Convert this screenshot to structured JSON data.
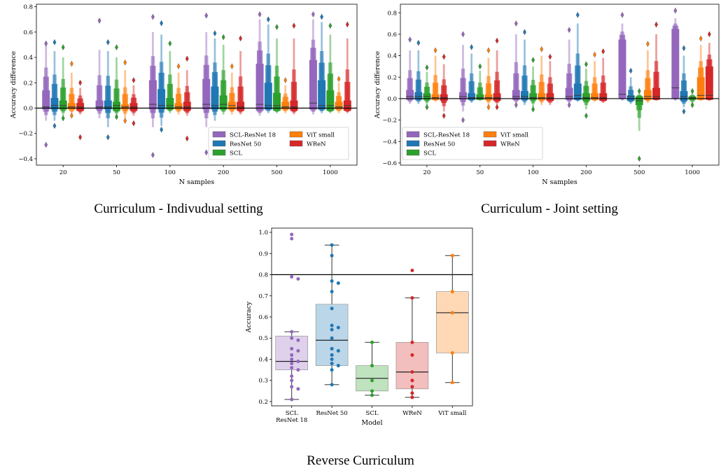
{
  "colors": {
    "SCL-ResNet 18": "#9467bd",
    "ResNet 50": "#1f77b4",
    "SCL": "#2ca02c",
    "ViT small": "#ff7f0e",
    "WReN": "#d62728"
  },
  "chart_data": [
    {
      "type": "boxen",
      "caption": "Curriculum - Indivudual setting",
      "xlabel": "N samples",
      "ylabel": "Accuracy difference",
      "categories": [
        "20",
        "50",
        "100",
        "200",
        "500",
        "1000"
      ],
      "ylim": [
        -0.45,
        0.82
      ],
      "yticks": [
        -0.4,
        -0.2,
        0.0,
        0.2,
        0.4,
        0.6,
        0.8
      ],
      "ytick_labels": [
        "−0.4",
        "−0.2",
        "0.0",
        "0.2",
        "0.4",
        "0.6",
        "0.8"
      ],
      "hline": 0.0,
      "legend": {
        "placement": "lower right",
        "columns": 2,
        "order": [
          "SCL-ResNet 18",
          "ResNet 50",
          "SCL",
          "ViT small",
          "WReN"
        ]
      },
      "series": [
        {
          "name": "SCL-ResNet 18",
          "median": [
            0.01,
            0.01,
            0.03,
            0.03,
            0.03,
            0.04
          ],
          "q1": [
            -0.01,
            -0.01,
            -0.01,
            -0.01,
            -0.02,
            -0.01
          ],
          "q3": [
            0.14,
            0.06,
            0.22,
            0.23,
            0.35,
            0.38
          ],
          "lo": [
            -0.1,
            -0.08,
            -0.15,
            -0.15,
            -0.06,
            -0.05
          ],
          "hi": [
            0.5,
            0.46,
            0.6,
            0.6,
            0.7,
            0.7
          ],
          "fmin": [
            -0.29,
            -0.08,
            -0.37,
            -0.35,
            -0.06,
            -0.05
          ],
          "fmax": [
            0.51,
            0.69,
            0.72,
            0.73,
            0.74,
            0.74
          ]
        },
        {
          "name": "ResNet 50",
          "median": [
            0.02,
            0.01,
            0.02,
            0.02,
            0.02,
            0.02
          ],
          "q1": [
            -0.01,
            -0.01,
            -0.01,
            -0.01,
            -0.01,
            -0.01
          ],
          "q3": [
            0.08,
            0.06,
            0.15,
            0.17,
            0.2,
            0.22
          ],
          "lo": [
            -0.1,
            -0.15,
            -0.14,
            -0.1,
            -0.04,
            -0.04
          ],
          "hi": [
            0.45,
            0.45,
            0.58,
            0.55,
            0.66,
            0.68
          ],
          "fmin": [
            -0.14,
            -0.23,
            -0.17,
            -0.1,
            -0.04,
            -0.04
          ],
          "fmax": [
            0.52,
            0.52,
            0.67,
            0.59,
            0.7,
            0.72
          ]
        },
        {
          "name": "SCL",
          "median": [
            0.02,
            0.02,
            0.02,
            0.03,
            0.02,
            0.02
          ],
          "q1": [
            -0.01,
            -0.02,
            -0.01,
            -0.01,
            -0.02,
            -0.02
          ],
          "q3": [
            0.06,
            0.05,
            0.08,
            0.1,
            0.12,
            0.14
          ],
          "lo": [
            -0.06,
            -0.06,
            -0.04,
            -0.05,
            -0.04,
            -0.04
          ],
          "hi": [
            0.4,
            0.4,
            0.45,
            0.5,
            0.55,
            0.58
          ],
          "fmin": [
            -0.08,
            -0.07,
            -0.04,
            -0.05,
            -0.04,
            -0.04
          ],
          "fmax": [
            0.48,
            0.48,
            0.51,
            0.56,
            0.64,
            0.65
          ]
        },
        {
          "name": "ViT small",
          "median": [
            0.01,
            0.01,
            0.01,
            0.02,
            0.01,
            0.01
          ],
          "q1": [
            -0.01,
            -0.01,
            -0.01,
            -0.01,
            -0.01,
            -0.01
          ],
          "q3": [
            0.04,
            0.03,
            0.04,
            0.05,
            0.05,
            0.05
          ],
          "lo": [
            -0.05,
            -0.08,
            -0.05,
            -0.05,
            -0.04,
            -0.04
          ],
          "hi": [
            0.28,
            0.3,
            0.28,
            0.28,
            0.18,
            0.2
          ],
          "fmin": [
            -0.06,
            -0.1,
            -0.05,
            -0.05,
            -0.04,
            -0.04
          ],
          "fmax": [
            0.35,
            0.36,
            0.33,
            0.33,
            0.22,
            0.23
          ]
        },
        {
          "name": "WReN",
          "median": [
            0.01,
            0.01,
            0.01,
            0.01,
            0.01,
            0.02
          ],
          "q1": [
            -0.02,
            -0.02,
            -0.02,
            -0.02,
            -0.02,
            -0.02
          ],
          "q3": [
            0.04,
            0.04,
            0.05,
            0.05,
            0.06,
            0.06
          ],
          "lo": [
            -0.05,
            -0.06,
            -0.06,
            -0.05,
            -0.05,
            -0.04
          ],
          "hi": [
            0.16,
            0.18,
            0.3,
            0.45,
            0.55,
            0.55
          ],
          "fmin": [
            -0.23,
            -0.12,
            -0.24,
            -0.05,
            -0.05,
            -0.04
          ],
          "fmax": [
            0.2,
            0.22,
            0.39,
            0.55,
            0.65,
            0.66
          ]
        }
      ]
    },
    {
      "type": "boxen",
      "caption": "Curriculum - Joint setting",
      "xlabel": "N samples",
      "ylabel": "Accuracy difference",
      "categories": [
        "20",
        "50",
        "100",
        "200",
        "500",
        "1000"
      ],
      "ylim": [
        -0.62,
        0.88
      ],
      "yticks": [
        -0.6,
        -0.4,
        -0.2,
        0.0,
        0.2,
        0.4,
        0.6,
        0.8
      ],
      "ytick_labels": [
        "−0.6",
        "−0.4",
        "−0.2",
        "0.0",
        "0.2",
        "0.4",
        "0.6",
        "0.8"
      ],
      "hline": 0.0,
      "legend": {
        "placement": "lower left",
        "columns": 2,
        "order": [
          "SCL-ResNet 18",
          "ResNet 50",
          "SCL",
          "ViT small",
          "WReN"
        ]
      },
      "series": [
        {
          "name": "SCL-ResNet 18",
          "median": [
            0.02,
            0.02,
            0.02,
            0.02,
            0.04,
            0.1
          ],
          "q1": [
            -0.01,
            -0.01,
            -0.01,
            -0.01,
            0.0,
            0.0
          ],
          "q3": [
            0.08,
            0.06,
            0.08,
            0.1,
            0.55,
            0.65
          ],
          "lo": [
            -0.05,
            -0.12,
            -0.05,
            -0.05,
            -0.02,
            -0.02
          ],
          "hi": [
            0.45,
            0.5,
            0.6,
            0.55,
            0.7,
            0.75
          ],
          "fmin": [
            -0.05,
            -0.2,
            -0.06,
            -0.06,
            -0.02,
            -0.02
          ],
          "fmax": [
            0.55,
            0.6,
            0.7,
            0.64,
            0.78,
            0.82
          ]
        },
        {
          "name": "ResNet 50",
          "median": [
            0.02,
            0.01,
            0.02,
            0.03,
            0.02,
            0.02
          ],
          "q1": [
            -0.01,
            -0.01,
            -0.01,
            -0.01,
            -0.02,
            -0.02
          ],
          "q3": [
            0.06,
            0.05,
            0.07,
            0.14,
            0.03,
            0.07
          ],
          "lo": [
            -0.05,
            -0.04,
            -0.06,
            -0.03,
            -0.05,
            -0.08
          ],
          "hi": [
            0.45,
            0.42,
            0.55,
            0.7,
            0.2,
            0.4
          ],
          "fmin": [
            -0.05,
            -0.04,
            -0.06,
            -0.03,
            -0.05,
            -0.12
          ],
          "fmax": [
            0.52,
            0.48,
            0.62,
            0.78,
            0.26,
            0.47
          ]
        },
        {
          "name": "SCL",
          "median": [
            0.02,
            0.01,
            0.01,
            0.01,
            -0.02,
            0.01
          ],
          "q1": [
            -0.01,
            -0.01,
            -0.01,
            -0.02,
            -0.06,
            -0.01
          ],
          "q3": [
            0.05,
            0.04,
            0.05,
            0.05,
            0.02,
            0.02
          ],
          "lo": [
            -0.06,
            -0.02,
            -0.08,
            -0.1,
            -0.3,
            -0.05
          ],
          "hi": [
            0.25,
            0.26,
            0.3,
            0.28,
            0.05,
            0.05
          ],
          "fmin": [
            -0.08,
            -0.02,
            -0.1,
            -0.16,
            -0.56,
            -0.06
          ],
          "fmax": [
            0.29,
            0.3,
            0.36,
            0.32,
            0.07,
            0.07
          ]
        },
        {
          "name": "ViT small",
          "median": [
            0.01,
            0.01,
            0.01,
            0.01,
            0.02,
            0.03
          ],
          "q1": [
            -0.01,
            -0.01,
            -0.01,
            -0.01,
            -0.01,
            -0.01
          ],
          "q3": [
            0.04,
            0.04,
            0.05,
            0.05,
            0.08,
            0.2
          ],
          "lo": [
            -0.03,
            -0.06,
            -0.06,
            -0.03,
            -0.04,
            -0.02
          ],
          "hi": [
            0.4,
            0.38,
            0.4,
            0.35,
            0.45,
            0.5
          ],
          "fmin": [
            -0.03,
            -0.08,
            -0.06,
            -0.03,
            -0.04,
            -0.02
          ],
          "fmax": [
            0.45,
            0.45,
            0.46,
            0.41,
            0.51,
            0.56
          ]
        },
        {
          "name": "WReN",
          "median": [
            0.01,
            0.01,
            0.01,
            0.01,
            0.02,
            0.03
          ],
          "q1": [
            -0.02,
            -0.02,
            -0.02,
            -0.02,
            -0.01,
            -0.01
          ],
          "q3": [
            0.04,
            0.05,
            0.05,
            0.05,
            0.1,
            0.3
          ],
          "lo": [
            -0.12,
            -0.06,
            -0.06,
            -0.04,
            -0.02,
            -0.02
          ],
          "hi": [
            0.32,
            0.45,
            0.35,
            0.38,
            0.6,
            0.52
          ],
          "fmin": [
            -0.16,
            -0.08,
            -0.06,
            -0.04,
            -0.02,
            -0.02
          ],
          "fmax": [
            0.39,
            0.54,
            0.39,
            0.44,
            0.69,
            0.6
          ]
        }
      ]
    },
    {
      "type": "box-swarm",
      "caption": "Reverse Curriculum",
      "xlabel": "Model",
      "ylabel": "Accuracy",
      "categories": [
        "SCL\nResNet 18",
        "ResNet 50",
        "SCL",
        "WReN",
        "ViT small"
      ],
      "series_keys": [
        "SCL-ResNet 18",
        "ResNet 50",
        "SCL",
        "WReN",
        "ViT small"
      ],
      "ylim": [
        0.18,
        1.02
      ],
      "yticks": [
        0.2,
        0.3,
        0.4,
        0.5,
        0.6,
        0.7,
        0.8,
        0.9,
        1.0
      ],
      "ytick_labels": [
        "0.2",
        "0.3",
        "0.4",
        "0.5",
        "0.6",
        "0.7",
        "0.8",
        "0.9",
        "1.0"
      ],
      "hline": 0.8,
      "boxes": [
        {
          "q1": 0.35,
          "median": 0.39,
          "q3": 0.51,
          "wlo": 0.21,
          "whi": 0.53
        },
        {
          "q1": 0.37,
          "median": 0.49,
          "q3": 0.66,
          "wlo": 0.28,
          "whi": 0.94
        },
        {
          "q1": 0.25,
          "median": 0.31,
          "q3": 0.37,
          "wlo": 0.23,
          "whi": 0.48
        },
        {
          "q1": 0.26,
          "median": 0.34,
          "q3": 0.48,
          "wlo": 0.22,
          "whi": 0.69
        },
        {
          "q1": 0.43,
          "median": 0.62,
          "q3": 0.72,
          "wlo": 0.29,
          "whi": 0.89
        }
      ],
      "points": [
        [
          0.99,
          0.97,
          0.79,
          0.78,
          0.53,
          0.5,
          0.49,
          0.45,
          0.44,
          0.42,
          0.4,
          0.39,
          0.38,
          0.36,
          0.35,
          0.32,
          0.3,
          0.27,
          0.26,
          0.21
        ],
        [
          0.94,
          0.89,
          0.77,
          0.76,
          0.72,
          0.64,
          0.56,
          0.55,
          0.54,
          0.5,
          0.45,
          0.44,
          0.42,
          0.4,
          0.38,
          0.37,
          0.35,
          0.28
        ],
        [
          0.48,
          0.37,
          0.3,
          0.25,
          0.23
        ],
        [
          0.82,
          0.69,
          0.48,
          0.42,
          0.34,
          0.3,
          0.27,
          0.24,
          0.22
        ],
        [
          0.89,
          0.72,
          0.62,
          0.43,
          0.29
        ]
      ]
    }
  ]
}
